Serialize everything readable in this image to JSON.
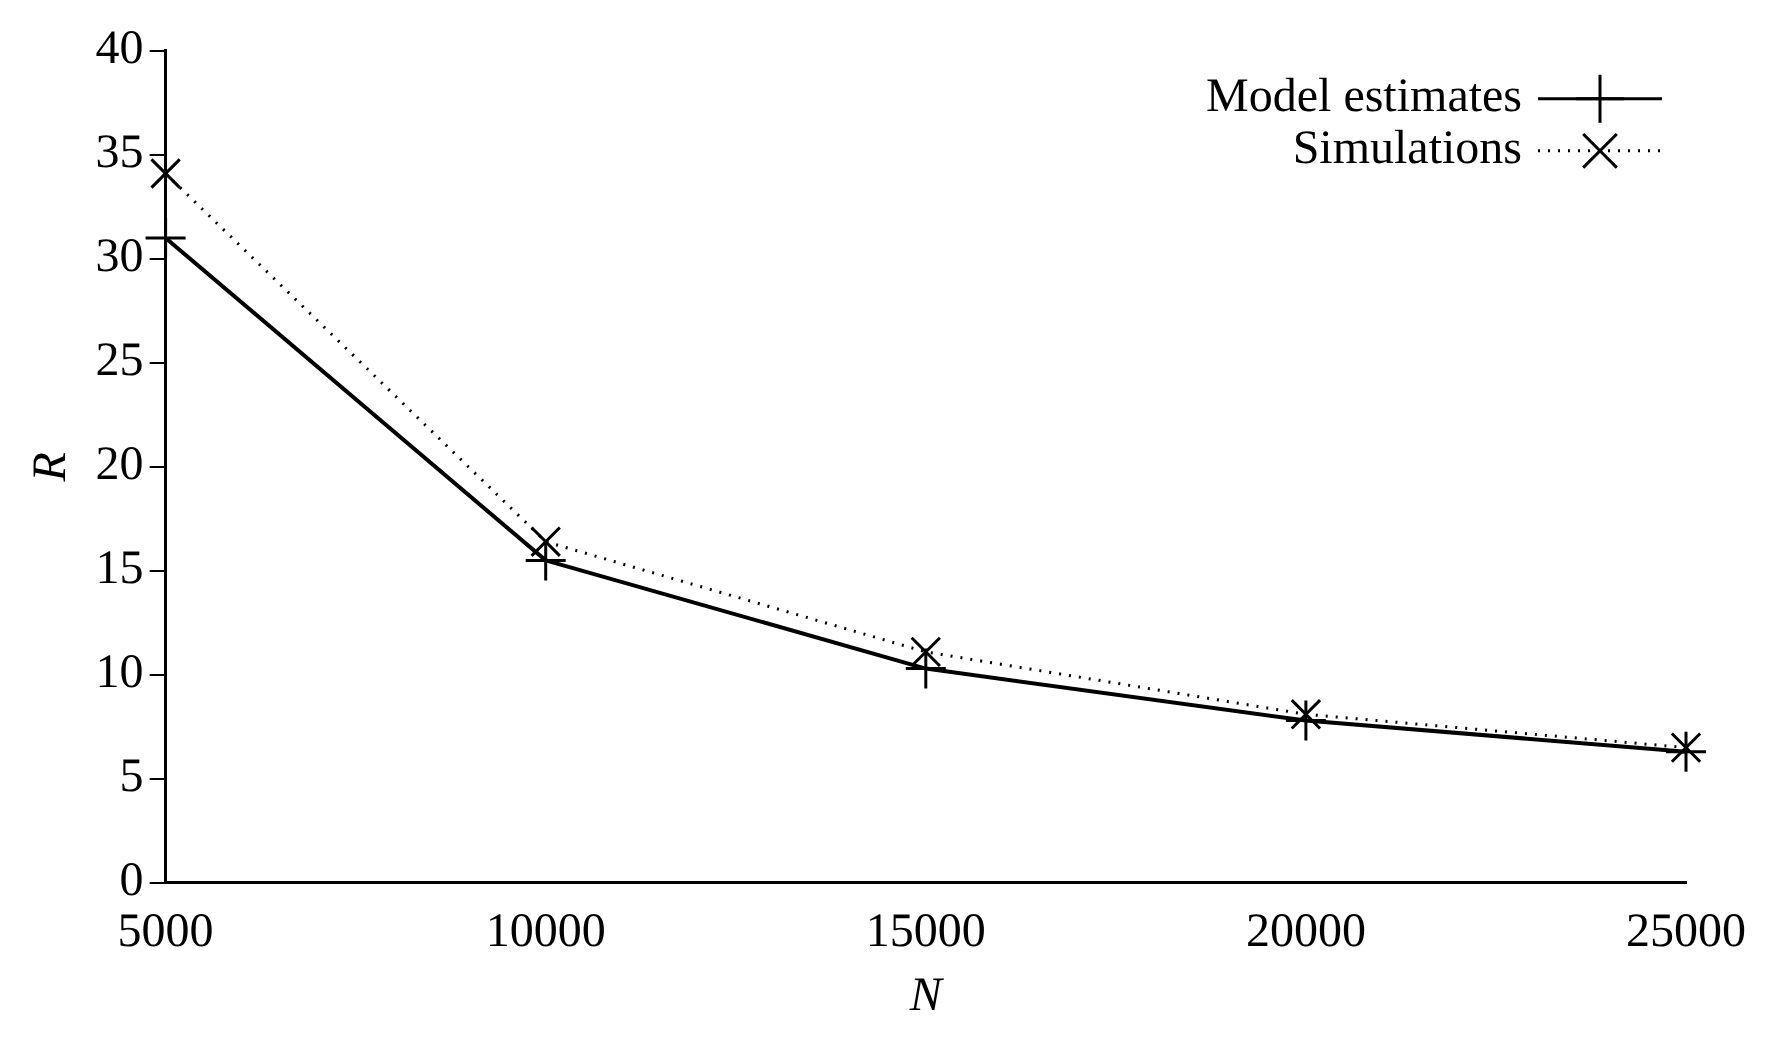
{
  "chart_data": {
    "type": "line",
    "xlabel": "N",
    "ylabel": "R",
    "xlim": [
      5000,
      25000
    ],
    "ylim": [
      0,
      40
    ],
    "xticks": [
      5000,
      10000,
      15000,
      20000,
      25000
    ],
    "yticks": [
      0,
      5,
      10,
      15,
      20,
      25,
      30,
      35,
      40
    ],
    "grid": false,
    "legend": "top right",
    "x": [
      5000,
      10000,
      15000,
      20000,
      25000
    ],
    "series": [
      {
        "name": "Model estimates",
        "color": "#000000",
        "values": [
          31.0,
          15.5,
          10.3,
          7.8,
          6.3
        ],
        "marker": "cross",
        "line_style": "solid"
      },
      {
        "name": "Simulations",
        "color": "#000000",
        "values": [
          34.1,
          16.4,
          11.1,
          8.1,
          6.5
        ],
        "marker": "cross",
        "line_style": "dotted"
      }
    ]
  }
}
